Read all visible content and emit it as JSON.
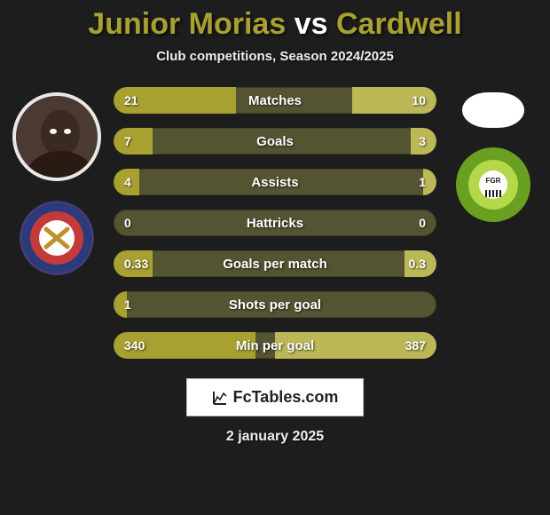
{
  "title": {
    "player1": "Junior Morias",
    "vs": "vs",
    "player2": "Cardwell"
  },
  "subtitle": "Club competitions, Season 2024/2025",
  "colors": {
    "bar_left": "#a8a030",
    "bar_right": "#bcb858",
    "bar_track": "#545432",
    "background": "#1d1d1d"
  },
  "rows": [
    {
      "metric": "Matches",
      "left_val": "21",
      "right_val": "10",
      "left_pct": 38,
      "right_pct": 26
    },
    {
      "metric": "Goals",
      "left_val": "7",
      "right_val": "3",
      "left_pct": 12,
      "right_pct": 8
    },
    {
      "metric": "Assists",
      "left_val": "4",
      "right_val": "1",
      "left_pct": 8,
      "right_pct": 4
    },
    {
      "metric": "Hattricks",
      "left_val": "0",
      "right_val": "0",
      "left_pct": 0,
      "right_pct": 0
    },
    {
      "metric": "Goals per match",
      "left_val": "0.33",
      "right_val": "0.3",
      "left_pct": 12,
      "right_pct": 10
    },
    {
      "metric": "Shots per goal",
      "left_val": "1",
      "right_val": "",
      "left_pct": 4,
      "right_pct": 0
    },
    {
      "metric": "Min per goal",
      "left_val": "340",
      "right_val": "387",
      "left_pct": 44,
      "right_pct": 50
    }
  ],
  "brand": "FcTables.com",
  "date": "2 january 2025"
}
